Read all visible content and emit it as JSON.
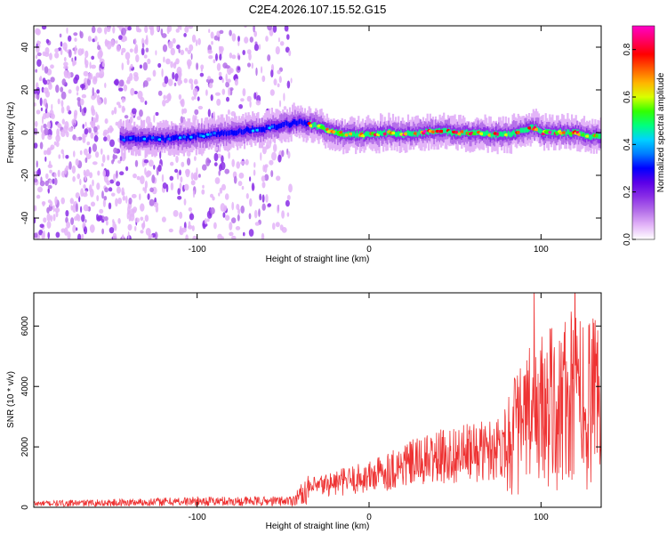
{
  "title": "C2E4.2026.107.15.52.G15",
  "chart_data": [
    {
      "type": "heatmap",
      "name": "spectrogram",
      "xlabel": "Height of straight line (km)",
      "ylabel": "Frequency (Hz)",
      "xlim": [
        -195,
        135
      ],
      "ylim": [
        -50,
        50
      ],
      "xticks": [
        -100,
        0,
        100
      ],
      "yticks": [
        -40,
        -20,
        0,
        20,
        40
      ],
      "colorbar": {
        "label": "Normalized spectral amplitude",
        "range": [
          0.0,
          0.9
        ],
        "ticks": [
          0.0,
          0.2,
          0.4,
          0.6,
          0.8
        ],
        "colors": [
          "#ffffff",
          "#e3b4f8",
          "#b46fe9",
          "#8a2ee6",
          "#5a00e8",
          "#0000ff",
          "#007bff",
          "#00d2ff",
          "#00ff7e",
          "#33ff00",
          "#d9ff00",
          "#ffb400",
          "#ff5a00",
          "#ff0000",
          "#ff0066",
          "#ff00c8"
        ]
      },
      "ridge": {
        "x": [
          -145,
          -120,
          -100,
          -80,
          -60,
          -40,
          -30,
          -20,
          -10,
          0,
          10,
          20,
          30,
          40,
          50,
          60,
          70,
          80,
          90,
          95,
          100,
          110,
          120,
          130,
          135
        ],
        "y": [
          -3,
          -3,
          -1.5,
          0,
          2,
          5,
          3,
          0,
          -1,
          -1,
          0,
          -1,
          0,
          1,
          0,
          0,
          -1,
          -1,
          1,
          2.5,
          0,
          0,
          0,
          -2,
          -1
        ]
      },
      "noise_region_x": [
        -195,
        -45
      ]
    },
    {
      "type": "line",
      "name": "snr",
      "xlabel": "Height of straight line (km)",
      "ylabel": "SNR (10 * v/v)",
      "xlim": [
        -195,
        135
      ],
      "ylim": [
        0,
        7100
      ],
      "xticks": [
        -100,
        0,
        100
      ],
      "yticks": [
        0,
        2000,
        4000,
        6000
      ],
      "series": [
        {
          "name": "SNR",
          "color": "#ee3333",
          "x": [
            -195,
            -150,
            -100,
            -60,
            -45,
            -35,
            -25,
            -10,
            0,
            10,
            20,
            30,
            40,
            50,
            60,
            70,
            80,
            90,
            100,
            110,
            115,
            120,
            125,
            130,
            135
          ],
          "y": [
            120,
            150,
            200,
            200,
            220,
            600,
            750,
            900,
            1000,
            1200,
            1400,
            1500,
            1650,
            1750,
            1800,
            1900,
            2200,
            2700,
            3200,
            3300,
            3500,
            3600,
            3500,
            3400,
            3300
          ]
        }
      ]
    }
  ]
}
